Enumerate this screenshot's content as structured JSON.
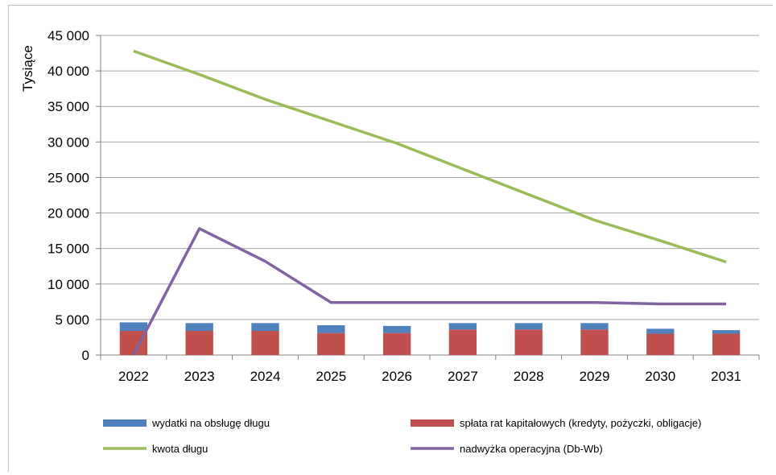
{
  "chart_data": {
    "type": "bar",
    "ylabel": "Tysiące",
    "ylim": [
      0,
      45000
    ],
    "y_ticks": [
      "0",
      "5 000",
      "10 000",
      "15 000",
      "20 000",
      "25 000",
      "30 000",
      "35 000",
      "40 000",
      "45 000"
    ],
    "categories": [
      "2022",
      "2023",
      "2024",
      "2025",
      "2026",
      "2027",
      "2028",
      "2029",
      "2030",
      "2031"
    ],
    "grid": true,
    "legend_position": "bottom",
    "series": [
      {
        "name": "spłata rat kapitałowych (kredyty, pożyczki, obligacje)",
        "type": "bar",
        "stacked": true,
        "color": "#c0504d",
        "values": [
          3400,
          3400,
          3400,
          3100,
          3100,
          3600,
          3600,
          3600,
          3000,
          3000
        ]
      },
      {
        "name": "wydatki na obsługę długu",
        "type": "bar",
        "stacked": true,
        "color": "#4f81bd",
        "values": [
          1200,
          1100,
          1100,
          1100,
          1000,
          900,
          900,
          900,
          700,
          500
        ]
      },
      {
        "name": "kwota długu",
        "type": "line",
        "color": "#9bbb59",
        "values": [
          42800,
          39500,
          36000,
          32900,
          29800,
          26200,
          22600,
          19000,
          16100,
          13100
        ]
      },
      {
        "name": "nadwyżka operacyjna (Db-Wb)",
        "type": "line",
        "color": "#8064a2",
        "values": [
          0,
          17800,
          13200,
          7400,
          7400,
          7400,
          7400,
          7400,
          7200,
          7200
        ]
      }
    ],
    "legend_order": [
      1,
      0,
      2,
      3
    ]
  }
}
